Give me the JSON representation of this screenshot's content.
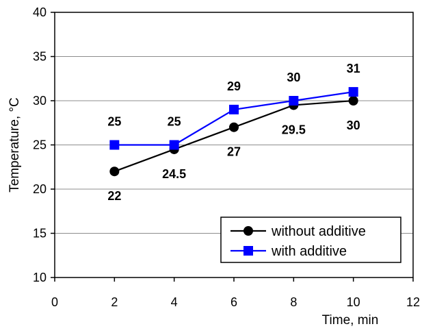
{
  "chart_data": {
    "type": "line",
    "title": "",
    "xlabel": "Time, min",
    "ylabel": "Temperature, °C",
    "xlim": [
      0,
      12
    ],
    "ylim": [
      10,
      40
    ],
    "x_ticks": [
      0,
      2,
      4,
      6,
      8,
      10,
      12
    ],
    "y_ticks": [
      10,
      15,
      20,
      25,
      30,
      35,
      40
    ],
    "x_tick_labels": [
      "0",
      "2",
      "4",
      "6",
      "8",
      "10",
      "12"
    ],
    "y_tick_labels": [
      "10",
      "15",
      "20",
      "25",
      "30",
      "35",
      "40"
    ],
    "grid": "horizontal",
    "legend_position": "bottom-right",
    "series": [
      {
        "name": "without additive",
        "color": "#000000",
        "marker": "circle",
        "x": [
          2,
          4,
          6,
          8,
          10
        ],
        "y": [
          22,
          24.5,
          27,
          29.5,
          30
        ],
        "labels": [
          "22",
          "24.5",
          "27",
          "29.5",
          "30"
        ],
        "label_position": "below"
      },
      {
        "name": "with additive",
        "color": "#0000ff",
        "marker": "square",
        "x": [
          2,
          4,
          6,
          8,
          10
        ],
        "y": [
          25,
          25,
          29,
          30,
          31
        ],
        "labels": [
          "25",
          "25",
          "29",
          "30",
          "31"
        ],
        "label_position": "above"
      }
    ]
  }
}
